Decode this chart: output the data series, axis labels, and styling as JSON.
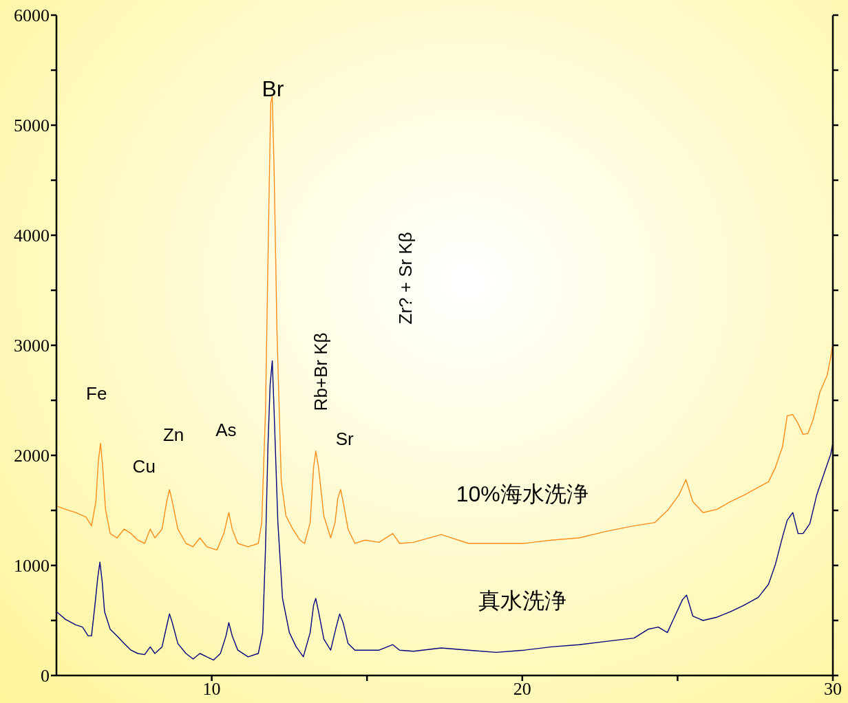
{
  "chart_data": {
    "type": "line",
    "xlim": [
      5,
      30
    ],
    "ylim": [
      0,
      6000
    ],
    "xticks": [
      10,
      {
        "value": 15,
        "label": null
      },
      20,
      {
        "value": 25,
        "label": null
      },
      30
    ],
    "yticks": [
      0,
      {
        "value": 500,
        "label": null
      },
      1000,
      {
        "value": 1500,
        "label": null
      },
      2000,
      {
        "value": 2500,
        "label": null
      },
      3000,
      {
        "value": 3500,
        "label": null
      },
      4000,
      {
        "value": 4500,
        "label": null
      },
      5000,
      {
        "value": 5500,
        "label": null
      },
      6000
    ],
    "marker": "none",
    "line_style": "solid",
    "annotations": [
      "Fe",
      "Cu",
      "Zn",
      "As",
      "Br",
      "Rb+Br Kβ",
      "Sr",
      "Zr? + Sr Kβ"
    ],
    "series": [
      {
        "name": "10%海水洗浄",
        "color": "#ff8c1a",
        "x": [
          5.0,
          5.29,
          5.62,
          5.95,
          6.13,
          6.27,
          6.35,
          6.42,
          6.49,
          6.58,
          6.73,
          6.95,
          7.18,
          7.4,
          7.62,
          7.84,
          8.02,
          8.17,
          8.4,
          8.55,
          8.64,
          8.73,
          8.91,
          9.17,
          9.4,
          9.62,
          9.84,
          10.17,
          10.39,
          10.55,
          10.66,
          10.84,
          11.17,
          11.5,
          11.61,
          11.73,
          11.84,
          11.9,
          11.95,
          12.01,
          12.1,
          12.24,
          12.39,
          12.61,
          12.84,
          12.99,
          13.17,
          13.28,
          13.35,
          13.44,
          13.61,
          13.83,
          13.97,
          14.06,
          14.15,
          14.23,
          14.39,
          14.61,
          14.94,
          15.39,
          15.83,
          16.05,
          16.5,
          17.39,
          18.27,
          19.16,
          20.05,
          20.94,
          21.83,
          22.71,
          23.6,
          24.27,
          24.71,
          25.04,
          25.27,
          25.49,
          25.82,
          26.27,
          26.71,
          27.15,
          27.6,
          27.93,
          28.15,
          28.38,
          28.53,
          28.71,
          28.88,
          29.04,
          29.2,
          29.37,
          29.59,
          29.82,
          29.93,
          30
        ],
        "values": [
          1540,
          1510,
          1480,
          1440,
          1360,
          1580,
          1950,
          2110,
          1890,
          1510,
          1290,
          1250,
          1330,
          1290,
          1230,
          1200,
          1330,
          1250,
          1330,
          1580,
          1690,
          1580,
          1330,
          1200,
          1170,
          1250,
          1170,
          1140,
          1290,
          1480,
          1330,
          1200,
          1170,
          1200,
          1390,
          2390,
          4260,
          5200,
          5260,
          4580,
          3140,
          1760,
          1450,
          1330,
          1230,
          1200,
          1390,
          1890,
          2040,
          1890,
          1450,
          1250,
          1390,
          1610,
          1690,
          1580,
          1330,
          1200,
          1230,
          1210,
          1290,
          1200,
          1210,
          1280,
          1200,
          1200,
          1200,
          1230,
          1250,
          1310,
          1360,
          1390,
          1510,
          1640,
          1780,
          1580,
          1480,
          1510,
          1580,
          1640,
          1710,
          1760,
          1890,
          2080,
          2360,
          2370,
          2290,
          2190,
          2200,
          2330,
          2580,
          2730,
          2890,
          3010
        ]
      },
      {
        "name": "真水洗浄",
        "color": "#000080",
        "x": [
          5.0,
          5.29,
          5.62,
          5.84,
          6.02,
          6.13,
          6.24,
          6.33,
          6.4,
          6.47,
          6.55,
          6.73,
          6.95,
          7.18,
          7.4,
          7.62,
          7.84,
          8.02,
          8.17,
          8.4,
          8.55,
          8.64,
          8.73,
          8.91,
          9.17,
          9.4,
          9.62,
          9.84,
          10.06,
          10.28,
          10.46,
          10.55,
          10.66,
          10.84,
          11.17,
          11.5,
          11.64,
          11.73,
          11.81,
          11.88,
          11.95,
          12.01,
          12.13,
          12.28,
          12.5,
          12.72,
          12.95,
          13.17,
          13.28,
          13.35,
          13.44,
          13.61,
          13.83,
          13.99,
          14.12,
          14.23,
          14.39,
          14.61,
          14.94,
          15.39,
          15.83,
          16.05,
          16.5,
          17.39,
          18.27,
          19.16,
          20.05,
          20.94,
          21.83,
          22.71,
          23.6,
          24.05,
          24.38,
          24.67,
          24.93,
          25.16,
          25.29,
          25.49,
          25.82,
          26.27,
          26.71,
          27.15,
          27.6,
          27.93,
          28.15,
          28.38,
          28.53,
          28.71,
          28.88,
          29.04,
          29.26,
          29.48,
          29.71,
          29.93,
          30
        ],
        "values": [
          580,
          510,
          460,
          440,
          360,
          360,
          640,
          890,
          1030,
          860,
          580,
          420,
          360,
          290,
          230,
          200,
          190,
          260,
          200,
          260,
          450,
          560,
          480,
          290,
          200,
          150,
          200,
          170,
          140,
          200,
          360,
          480,
          360,
          230,
          170,
          200,
          390,
          1140,
          2080,
          2640,
          2860,
          2390,
          1390,
          700,
          390,
          260,
          170,
          390,
          640,
          700,
          580,
          330,
          230,
          420,
          560,
          480,
          290,
          230,
          230,
          230,
          280,
          230,
          220,
          250,
          230,
          210,
          230,
          260,
          280,
          310,
          340,
          420,
          440,
          390,
          550,
          690,
          730,
          540,
          500,
          530,
          580,
          640,
          710,
          830,
          1010,
          1260,
          1410,
          1480,
          1290,
          1290,
          1380,
          1640,
          1830,
          2010,
          2110
        ]
      }
    ]
  }
}
